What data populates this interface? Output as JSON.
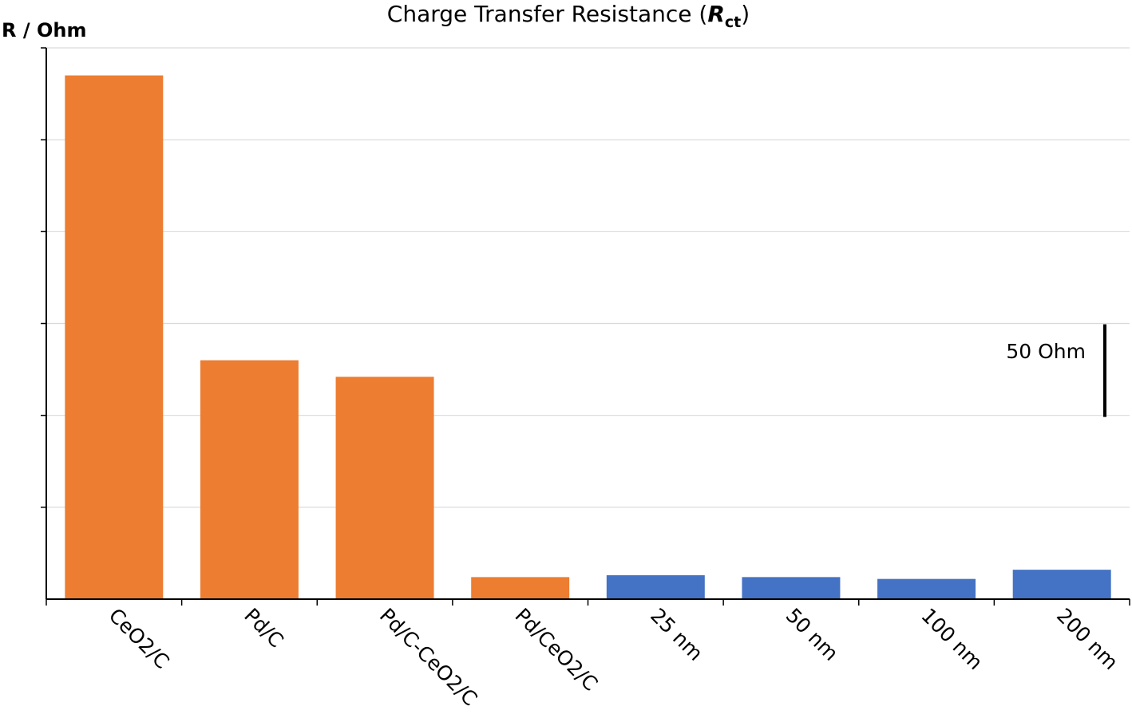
{
  "chart_data": {
    "type": "bar",
    "title_text": "Charge Transfer Resistance (",
    "title_symbol": "R",
    "title_subscript": "ct",
    "title_close": ")",
    "ylabel": "R / Ohm",
    "xlabel": "",
    "categories": [
      "CeO2/C",
      "Pd/C",
      "Pd/C-CeO2/C",
      "Pd/CeO2/C",
      "25 nm",
      "50 nm",
      "100 nm",
      "200 nm"
    ],
    "values": [
      285,
      130,
      121,
      12,
      13,
      12,
      11,
      16
    ],
    "bar_colors": [
      "#ed7d31",
      "#ed7d31",
      "#ed7d31",
      "#ed7d31",
      "#4472c4",
      "#4472c4",
      "#4472c4",
      "#4472c4"
    ],
    "ylim": [
      0,
      300
    ],
    "grid_step": 50,
    "grid": true,
    "y_tick_labels_shown": false,
    "scale_bar": {
      "label": "50 Ohm",
      "value": 50,
      "from": 100,
      "to": 150
    }
  }
}
